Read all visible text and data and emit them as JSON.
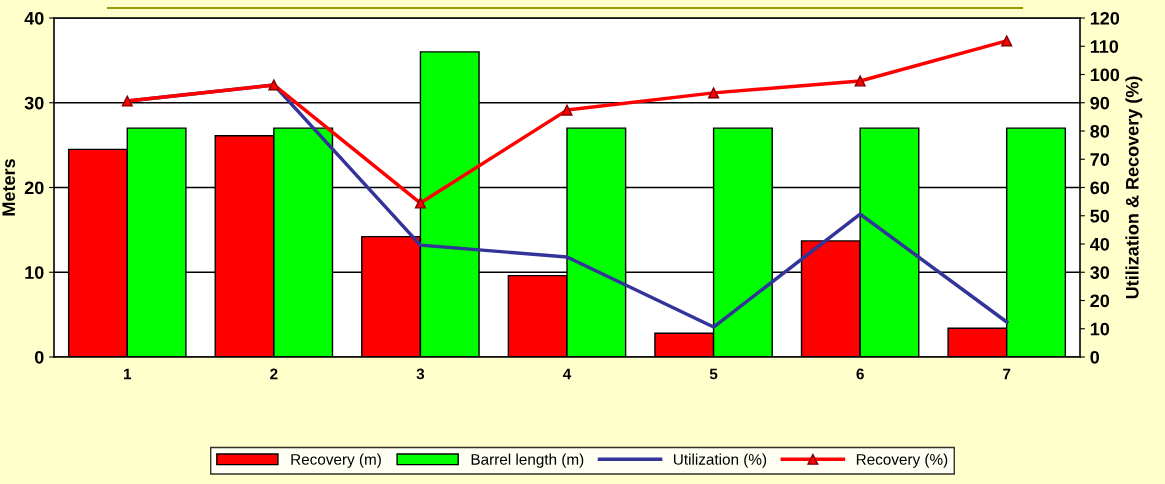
{
  "chart_data": {
    "type": "bar",
    "categories": [
      "1",
      "2",
      "3",
      "4",
      "5",
      "6",
      "7"
    ],
    "ylabel": "Meters",
    "y2label": "Utilization & Recovery (%)",
    "ylim": [
      0,
      40
    ],
    "yticks": [
      0,
      10,
      20,
      30,
      40
    ],
    "y2lim": [
      0,
      120
    ],
    "y2ticks": [
      0,
      10,
      20,
      30,
      40,
      50,
      60,
      70,
      80,
      90,
      100,
      110,
      120
    ],
    "grid": "y",
    "legend": "bottom",
    "series": [
      {
        "name": "Recovery (m)",
        "color": "#ff0000",
        "values": [
          24.5,
          26.1,
          14.2,
          9.6,
          2.8,
          13.7,
          3.4
        ]
      },
      {
        "name": "Barrel length (m)",
        "color": "#00ff00",
        "values": [
          27,
          27,
          36,
          27,
          27,
          27,
          27
        ]
      },
      {
        "name": "Utilization (%)",
        "type": "line",
        "axis": "y2",
        "color": "#333399",
        "marker": "none",
        "values": [
          90.6,
          96.3,
          39.6,
          35.4,
          10.6,
          50.6,
          12.4
        ]
      },
      {
        "name": "Recovery (%)",
        "type": "line",
        "axis": "y2",
        "color": "#ff0000",
        "marker": "triangle",
        "values": [
          90.6,
          96.3,
          54.5,
          87.4,
          93.5,
          97.7,
          111.9
        ]
      }
    ]
  }
}
